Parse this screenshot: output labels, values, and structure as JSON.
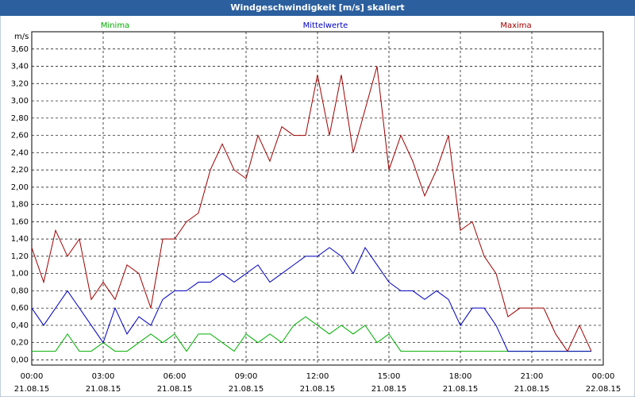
{
  "chart_data": {
    "type": "line",
    "title": "Windgeschwindigkeit [m/s] skaliert",
    "ylabel": "m/s",
    "grid": true,
    "x": [
      0,
      0.5,
      1,
      1.5,
      2,
      2.5,
      3,
      3.5,
      4,
      4.5,
      5,
      5.5,
      6,
      6.5,
      7,
      7.5,
      8,
      8.5,
      9,
      9.5,
      10,
      10.5,
      11,
      11.5,
      12,
      12.5,
      13,
      13.5,
      14,
      14.5,
      15,
      15.5,
      16,
      16.5,
      17,
      17.5,
      18,
      18.5,
      19,
      19.5,
      20,
      20.5,
      21,
      21.5,
      22,
      22.5,
      23,
      23.5
    ],
    "series": [
      {
        "name": "Minima",
        "color": "#00b000",
        "values": [
          0.1,
          0.1,
          0.1,
          0.3,
          0.1,
          0.1,
          0.2,
          0.1,
          0.1,
          0.2,
          0.3,
          0.2,
          0.3,
          0.1,
          0.3,
          0.3,
          0.2,
          0.1,
          0.3,
          0.2,
          0.3,
          0.2,
          0.4,
          0.5,
          0.4,
          0.3,
          0.4,
          0.3,
          0.4,
          0.2,
          0.3,
          0.1,
          0.1,
          0.1,
          0.1,
          0.1,
          0.1,
          0.1,
          0.1,
          0.1,
          0.1,
          0.1,
          0.1,
          0.1,
          0.1,
          0.1,
          0.1,
          0.1
        ]
      },
      {
        "name": "Mittelwerte",
        "color": "#0000c0",
        "values": [
          0.6,
          0.4,
          0.6,
          0.8,
          0.6,
          0.4,
          0.2,
          0.6,
          0.3,
          0.5,
          0.4,
          0.7,
          0.8,
          0.8,
          0.9,
          0.9,
          1.0,
          0.9,
          1.0,
          1.1,
          0.9,
          1.0,
          1.1,
          1.2,
          1.2,
          1.3,
          1.2,
          1.0,
          1.3,
          1.1,
          0.9,
          0.8,
          0.8,
          0.7,
          0.8,
          0.7,
          0.4,
          0.6,
          0.6,
          0.4,
          0.1,
          0.1,
          0.1,
          0.1,
          0.1,
          0.1,
          0.1,
          0.1
        ]
      },
      {
        "name": "Maxima",
        "color": "#a00000",
        "values": [
          1.3,
          0.9,
          1.5,
          1.2,
          1.4,
          0.7,
          0.9,
          0.7,
          1.1,
          1.0,
          0.6,
          1.4,
          1.4,
          1.6,
          1.7,
          2.2,
          2.5,
          2.2,
          2.1,
          2.6,
          2.3,
          2.7,
          2.6,
          2.6,
          3.3,
          2.6,
          3.3,
          2.4,
          2.9,
          3.4,
          2.2,
          2.6,
          2.3,
          1.9,
          2.2,
          2.6,
          1.5,
          1.6,
          1.2,
          1.0,
          0.5,
          0.6,
          0.6,
          0.6,
          0.3,
          0.1,
          0.4,
          0.1
        ]
      }
    ],
    "xlim": [
      0,
      24
    ],
    "xticks": [
      {
        "value": 0,
        "label": "00:00",
        "date": "21.08.15"
      },
      {
        "value": 3,
        "label": "03:00",
        "date": "21.08.15"
      },
      {
        "value": 6,
        "label": "06:00",
        "date": "21.08.15"
      },
      {
        "value": 9,
        "label": "09:00",
        "date": "21.08.15"
      },
      {
        "value": 12,
        "label": "12:00",
        "date": "21.08.15"
      },
      {
        "value": 15,
        "label": "15:00",
        "date": "21.08.15"
      },
      {
        "value": 18,
        "label": "18:00",
        "date": "21.08.15"
      },
      {
        "value": 21,
        "label": "21:00",
        "date": "21.08.15"
      },
      {
        "value": 24,
        "label": "00:00",
        "date": "22.08.15"
      }
    ],
    "ylim": [
      -0.06,
      3.8
    ],
    "yticks": [
      {
        "value": 0,
        "label": "0,00"
      },
      {
        "value": 0.2,
        "label": "0,20"
      },
      {
        "value": 0.4,
        "label": "0,40"
      },
      {
        "value": 0.6,
        "label": "0,60"
      },
      {
        "value": 0.8,
        "label": "0,80"
      },
      {
        "value": 1.0,
        "label": "1,00"
      },
      {
        "value": 1.2,
        "label": "1,20"
      },
      {
        "value": 1.4,
        "label": "1,40"
      },
      {
        "value": 1.6,
        "label": "1,60"
      },
      {
        "value": 1.8,
        "label": "1,80"
      },
      {
        "value": 2.0,
        "label": "2,00"
      },
      {
        "value": 2.2,
        "label": "2,20"
      },
      {
        "value": 2.4,
        "label": "2,40"
      },
      {
        "value": 2.6,
        "label": "2,60"
      },
      {
        "value": 2.8,
        "label": "2,80"
      },
      {
        "value": 3.0,
        "label": "3,00"
      },
      {
        "value": 3.2,
        "label": "3,20"
      },
      {
        "value": 3.4,
        "label": "3,40"
      },
      {
        "value": 3.6,
        "label": "3,60"
      }
    ]
  }
}
